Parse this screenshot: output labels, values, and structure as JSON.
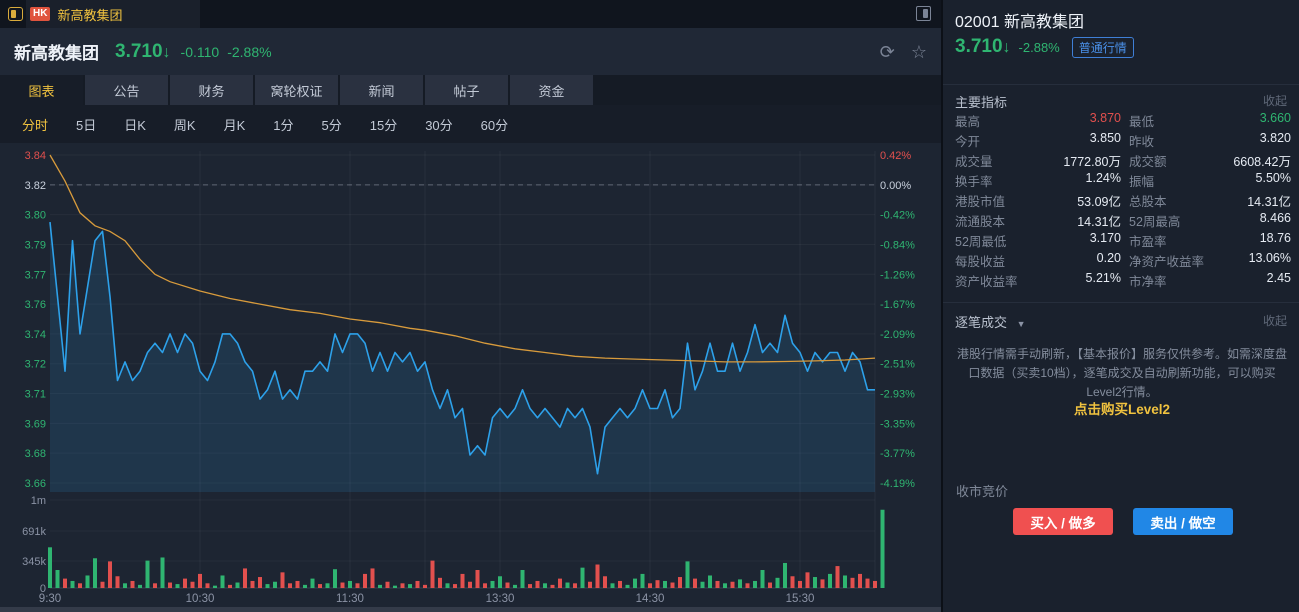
{
  "topbar": {
    "market_badge": "HK",
    "tab_title": "新高教集团"
  },
  "header": {
    "stock_name": "新高教集团",
    "price": "3.710",
    "arrow": "↓",
    "change": "-0.110",
    "change_pct": "-2.88%"
  },
  "tabs": {
    "items": [
      "图表",
      "公告",
      "财务",
      "窝轮权证",
      "新闻",
      "帖子",
      "资金"
    ],
    "active": "图表"
  },
  "period_tabs": {
    "items": [
      "分时",
      "5日",
      "日K",
      "周K",
      "月K",
      "1分",
      "5分",
      "15分",
      "30分",
      "60分"
    ],
    "active": "分时"
  },
  "sidebar": {
    "code_title": "02001 新高教集团",
    "price": "3.710",
    "arrow": "↓",
    "change_pct": "-2.88%",
    "quote_badge": "普通行情",
    "indicators": {
      "title": "主要指标",
      "collapse": "收起",
      "items": [
        {
          "label": "最高",
          "value": "3.870",
          "color": "up"
        },
        {
          "label": "最低",
          "value": "3.660",
          "color": "down"
        },
        {
          "label": "今开",
          "value": "3.850",
          "color": ""
        },
        {
          "label": "昨收",
          "value": "3.820",
          "color": ""
        },
        {
          "label": "成交量",
          "value": "1772.80万",
          "color": ""
        },
        {
          "label": "成交额",
          "value": "6608.42万",
          "color": ""
        },
        {
          "label": "换手率",
          "value": "1.24%",
          "color": ""
        },
        {
          "label": "振幅",
          "value": "5.50%",
          "color": ""
        },
        {
          "label": "港股市值",
          "value": "53.09亿",
          "color": ""
        },
        {
          "label": "总股本",
          "value": "14.31亿",
          "color": ""
        },
        {
          "label": "流通股本",
          "value": "14.31亿",
          "color": ""
        },
        {
          "label": "52周最高",
          "value": "8.466",
          "color": ""
        },
        {
          "label": "52周最低",
          "value": "3.170",
          "color": ""
        },
        {
          "label": "市盈率",
          "value": "18.76",
          "color": ""
        },
        {
          "label": "每股收益",
          "value": "0.20",
          "color": ""
        },
        {
          "label": "净资产收益率",
          "value": "13.06%",
          "color": ""
        },
        {
          "label": "资产收益率",
          "value": "5.21%",
          "color": ""
        },
        {
          "label": "市净率",
          "value": "2.45",
          "color": ""
        }
      ]
    },
    "ticks": {
      "title": "逐笔成交",
      "caret": "▼",
      "collapse": "收起",
      "notice": "港股行情需手动刷新，【基本报价】服务仅供参考。如需深度盘口数据（买卖10档），逐笔成交及自动刷新功能，可以购买Level2行情。",
      "link": "点击购买Level2"
    },
    "auction_label": "收市竞价",
    "buy_button": "买入 / 做多",
    "sell_button": "卖出 / 做空"
  },
  "chart_data": {
    "type": "line",
    "subtype": "intraday-with-volume",
    "x_labels": [
      "9:30",
      "10:30",
      "11:30",
      "13:30",
      "14:30",
      "15:30"
    ],
    "x_label_minutes": [
      0,
      60,
      120,
      180,
      240,
      300
    ],
    "session_minutes": 330,
    "grid_minutes": [
      60,
      120,
      150,
      180,
      240,
      300,
      330
    ],
    "prev_close": 3.82,
    "y_top_price": 3.836,
    "y_bottom_price": 3.66,
    "y_axis_left": [
      {
        "label": "3.84",
        "sent": "up"
      },
      {
        "label": "3.82",
        "sent": "flat"
      },
      {
        "label": "3.80",
        "sent": "down"
      },
      {
        "label": "3.79",
        "sent": "down"
      },
      {
        "label": "3.77",
        "sent": "down"
      },
      {
        "label": "3.76",
        "sent": "down"
      },
      {
        "label": "3.74",
        "sent": "down"
      },
      {
        "label": "3.72",
        "sent": "down"
      },
      {
        "label": "3.71",
        "sent": "down"
      },
      {
        "label": "3.69",
        "sent": "down"
      },
      {
        "label": "3.68",
        "sent": "down"
      },
      {
        "label": "3.66",
        "sent": "down"
      }
    ],
    "y_axis_right": [
      {
        "label": "0.42%",
        "sent": "up"
      },
      {
        "label": "0.00%",
        "sent": "flat"
      },
      {
        "label": "-0.42%",
        "sent": "down"
      },
      {
        "label": "-0.84%",
        "sent": "down"
      },
      {
        "label": "-1.26%",
        "sent": "down"
      },
      {
        "label": "-1.67%",
        "sent": "down"
      },
      {
        "label": "-2.09%",
        "sent": "down"
      },
      {
        "label": "-2.51%",
        "sent": "down"
      },
      {
        "label": "-2.93%",
        "sent": "down"
      },
      {
        "label": "-3.35%",
        "sent": "down"
      },
      {
        "label": "-3.77%",
        "sent": "down"
      },
      {
        "label": "-4.19%",
        "sent": "down"
      }
    ],
    "volume_axis": [
      "1m",
      "691k",
      "345k",
      "0"
    ],
    "price_step_minutes": 3,
    "price_series": [
      3.8,
      3.76,
      3.72,
      3.79,
      3.74,
      3.765,
      3.79,
      3.795,
      3.76,
      3.715,
      3.725,
      3.715,
      3.72,
      3.73,
      3.735,
      3.73,
      3.74,
      3.73,
      3.74,
      3.735,
      3.72,
      3.715,
      3.725,
      3.74,
      3.74,
      3.735,
      3.725,
      3.72,
      3.705,
      3.71,
      3.72,
      3.705,
      3.71,
      3.705,
      3.72,
      3.72,
      3.725,
      3.72,
      3.74,
      3.73,
      3.74,
      3.74,
      3.735,
      3.72,
      3.73,
      3.72,
      3.73,
      3.725,
      3.73,
      3.72,
      3.725,
      3.71,
      3.7,
      3.71,
      3.695,
      3.7,
      3.675,
      3.68,
      3.675,
      3.695,
      3.7,
      3.695,
      3.7,
      3.71,
      3.7,
      3.695,
      3.7,
      3.695,
      3.69,
      3.7,
      3.695,
      3.7,
      3.69,
      3.665,
      3.69,
      3.695,
      3.7,
      3.695,
      3.7,
      3.71,
      3.7,
      3.7,
      3.71,
      3.695,
      3.7,
      3.735,
      3.71,
      3.72,
      3.735,
      3.72,
      3.72,
      3.735,
      3.72,
      3.73,
      3.745,
      3.73,
      3.735,
      3.73,
      3.75,
      3.735,
      3.73,
      3.72,
      3.73,
      3.725,
      3.73,
      3.73,
      3.72,
      3.73,
      3.725,
      3.71,
      3.71
    ],
    "avg_line_anchors": [
      [
        0,
        3.836
      ],
      [
        6,
        3.822
      ],
      [
        12,
        3.805
      ],
      [
        18,
        3.798
      ],
      [
        24,
        3.795
      ],
      [
        30,
        3.79
      ],
      [
        36,
        3.78
      ],
      [
        42,
        3.772
      ],
      [
        48,
        3.768
      ],
      [
        60,
        3.763
      ],
      [
        72,
        3.759
      ],
      [
        84,
        3.756
      ],
      [
        96,
        3.753
      ],
      [
        108,
        3.751
      ],
      [
        120,
        3.748
      ],
      [
        132,
        3.746
      ],
      [
        144,
        3.743
      ],
      [
        150,
        3.742
      ],
      [
        162,
        3.739
      ],
      [
        174,
        3.735
      ],
      [
        186,
        3.732
      ],
      [
        198,
        3.73
      ],
      [
        210,
        3.728
      ],
      [
        222,
        3.727
      ],
      [
        234,
        3.7265
      ],
      [
        246,
        3.726
      ],
      [
        258,
        3.7255
      ],
      [
        270,
        3.725
      ],
      [
        282,
        3.725
      ],
      [
        294,
        3.7252
      ],
      [
        306,
        3.7255
      ],
      [
        318,
        3.726
      ],
      [
        330,
        3.727
      ]
    ],
    "volume_bars_k_signed": [
      520,
      230,
      -120,
      90,
      -60,
      160,
      380,
      -80,
      -340,
      -150,
      60,
      -90,
      40,
      350,
      -60,
      390,
      -70,
      50,
      -120,
      -80,
      -180,
      -60,
      30,
      160,
      -40,
      70,
      -250,
      -90,
      -140,
      50,
      80,
      -200,
      -60,
      -90,
      40,
      120,
      -50,
      60,
      240,
      -70,
      90,
      -60,
      -180,
      -250,
      40,
      -80,
      30,
      -60,
      50,
      -90,
      -40,
      -350,
      -130,
      60,
      -50,
      -180,
      -80,
      -230,
      -60,
      90,
      150,
      -70,
      40,
      230,
      -50,
      -90,
      60,
      -40,
      -120,
      70,
      -60,
      260,
      -80,
      -300,
      -150,
      60,
      -90,
      40,
      120,
      180,
      -60,
      -100,
      90,
      -70,
      -140,
      340,
      -120,
      80,
      160,
      -90,
      60,
      -80,
      110,
      -60,
      90,
      230,
      -70,
      130,
      320,
      -150,
      -90,
      -200,
      140,
      -110,
      180,
      -280,
      160,
      -130,
      -180,
      -120,
      -90,
      1000
    ],
    "colors": {
      "up": "#e2504e",
      "down": "#2fb571",
      "flat": "#c9d1dd",
      "line": "#2da1ea",
      "area": "rgba(45,140,210,0.16)",
      "avg": "#d89b3c",
      "accent_yellow": "#f0c23f",
      "buy": "#f05050",
      "sell": "#2187e6",
      "badge_blue": "#4a90e8"
    },
    "legend": [],
    "grid": true
  }
}
